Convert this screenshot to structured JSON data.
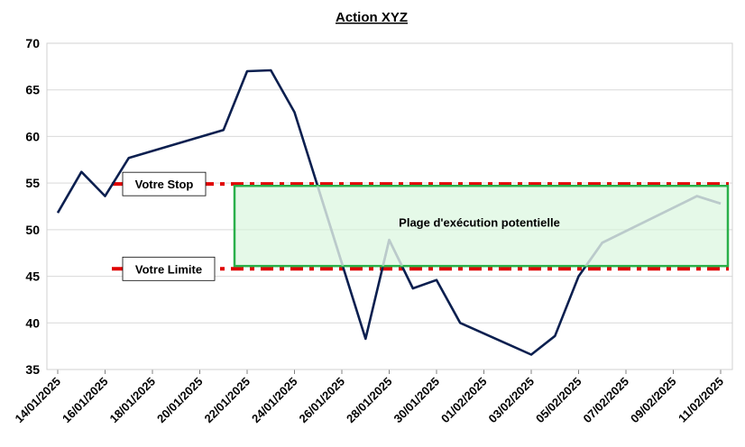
{
  "chart_data": {
    "type": "line",
    "title": "Action XYZ",
    "xlabel": "",
    "ylabel": "",
    "ylim": [
      35,
      70
    ],
    "yticks": [
      35,
      40,
      45,
      50,
      55,
      60,
      65,
      70
    ],
    "xlim": [
      "2025-01-14",
      "2025-02-11"
    ],
    "xticks": [
      "14/01/2025",
      "16/01/2025",
      "18/01/2025",
      "20/01/2025",
      "22/01/2025",
      "24/01/2025",
      "26/01/2025",
      "28/01/2025",
      "30/01/2025",
      "01/02/2025",
      "03/02/2025",
      "05/02/2025",
      "07/02/2025",
      "09/02/2025",
      "11/02/2025"
    ],
    "grid": "horizontal",
    "series": [
      {
        "color": "#0b1f4f",
        "points": [
          [
            "2025-01-14",
            51.8
          ],
          [
            "2025-01-15",
            56.2
          ],
          [
            "2025-01-16",
            53.6
          ],
          [
            "2025-01-17",
            57.7
          ],
          [
            "2025-01-21",
            60.7
          ],
          [
            "2025-01-22",
            67.0
          ],
          [
            "2025-01-23",
            67.1
          ],
          [
            "2025-01-24",
            62.6
          ],
          [
            "2025-01-27",
            38.3
          ],
          [
            "2025-01-28",
            48.9
          ],
          [
            "2025-01-29",
            43.7
          ],
          [
            "2025-01-30",
            44.6
          ],
          [
            "2025-01-31",
            40.0
          ],
          [
            "2025-02-03",
            36.6
          ],
          [
            "2025-02-04",
            38.6
          ],
          [
            "2025-02-05",
            45.0
          ],
          [
            "2025-02-06",
            48.6
          ],
          [
            "2025-02-10",
            53.6
          ],
          [
            "2025-02-11",
            52.8
          ]
        ]
      }
    ],
    "stop_line": {
      "value": 54.9,
      "color": "#e00000",
      "label": "Votre Stop"
    },
    "limit_line": {
      "value": 45.8,
      "color": "#e00000",
      "label": "Votre Limite"
    },
    "zone": {
      "from": "2025-01-22",
      "to": "2025-02-11",
      "ymin": 46.1,
      "ymax": 54.7,
      "label": "Plage d'exécution potentielle",
      "fill": "#d4f5d8",
      "stroke": "#2ab04a"
    }
  }
}
